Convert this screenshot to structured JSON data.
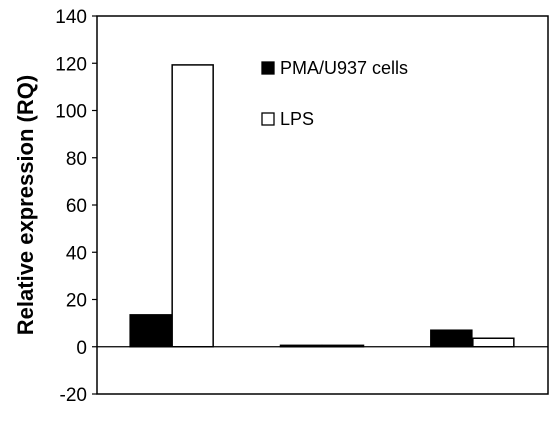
{
  "chart_data": {
    "type": "bar",
    "title": "",
    "xlabel": "",
    "ylabel": "Relative expression (RQ)",
    "categories": [
      "",
      "",
      ""
    ],
    "series": [
      {
        "name": "PMA/U937 cells",
        "values": [
          13.5,
          0.6,
          7.0
        ],
        "color": "#000000"
      },
      {
        "name": "LPS",
        "values": [
          119.3,
          0.6,
          3.6
        ],
        "color": "#ffffff"
      }
    ],
    "ylim": [
      -20,
      140
    ],
    "yticks": [
      "-20",
      "0",
      "20",
      "40",
      "60",
      "80",
      "100",
      "120",
      "140"
    ],
    "grid": false,
    "legend_position": "top-right"
  }
}
